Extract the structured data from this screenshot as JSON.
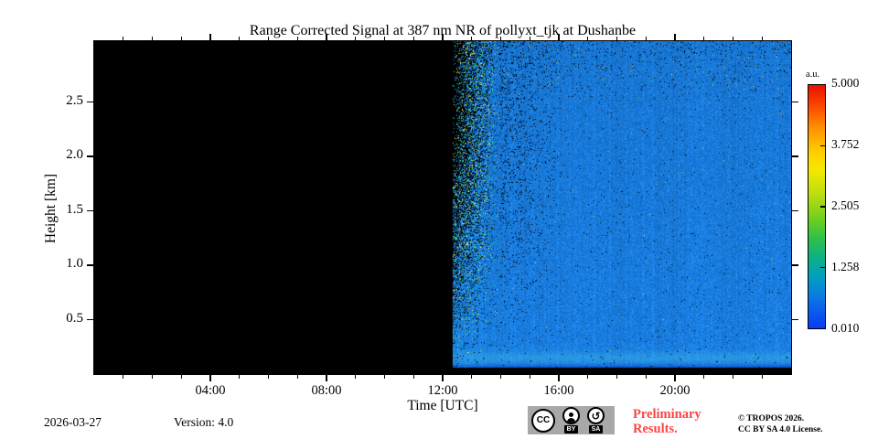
{
  "title": "Range Corrected Signal at 387 nm NR of pollyxt_tjk at Dushanbe",
  "footer": {
    "date": "2026-03-27",
    "version": "Version: 4.0",
    "license_badge": {
      "cc": "CC",
      "by": "BY",
      "sa": "SA"
    },
    "preliminary": {
      "line1": "Preliminary",
      "line2": "Results.",
      "color": "#f94545"
    },
    "copyright": {
      "line1": "© TROPOS 2026.",
      "line2": "CC BY SA 4.0 License."
    }
  },
  "chart_data": {
    "type": "heatmap",
    "title": "Range Corrected Signal at 387 nm NR of pollyxt_tjk at Dushanbe",
    "xlabel": "Time [UTC]",
    "ylabel": "Height [km]",
    "x_range_hours": [
      0,
      24
    ],
    "y_range_km": [
      0,
      3.06
    ],
    "x_major_tick_hours": [
      4,
      8,
      12,
      16,
      20
    ],
    "x_major_tick_labels": [
      "04:00",
      "08:00",
      "12:00",
      "16:00",
      "20:00"
    ],
    "x_minor_tick_interval_hours": 1,
    "y_major_ticks_km": [
      0.5,
      1.0,
      1.5,
      2.0,
      2.5
    ],
    "y_major_tick_labels": [
      "0.5",
      "1.0",
      "1.5",
      "2.0",
      "2.5"
    ],
    "grid": false,
    "colorbar": {
      "unit_label": "a.u.",
      "tick_values": [
        5.0,
        3.752,
        2.505,
        1.258,
        0.01
      ],
      "tick_labels": [
        "5.000",
        "3.752",
        "2.505",
        "1.258",
        "0.010"
      ],
      "range": [
        0.01,
        5.0
      ],
      "gradient_stops": [
        {
          "pos": 0,
          "color": "#e61300"
        },
        {
          "pos": 8,
          "color": "#fb4300"
        },
        {
          "pos": 17,
          "color": "#ff8c00"
        },
        {
          "pos": 27,
          "color": "#ffcc00"
        },
        {
          "pos": 35,
          "color": "#f5e800"
        },
        {
          "pos": 45,
          "color": "#bade0f"
        },
        {
          "pos": 55,
          "color": "#70cf1e"
        },
        {
          "pos": 63,
          "color": "#2fc04a"
        },
        {
          "pos": 71,
          "color": "#0cb184"
        },
        {
          "pos": 79,
          "color": "#009fc0"
        },
        {
          "pos": 87,
          "color": "#0b7ae0"
        },
        {
          "pos": 94,
          "color": "#0b56ee"
        },
        {
          "pos": 100,
          "color": "#0a3cf2"
        }
      ]
    },
    "content": {
      "description": "No lidar signal (black) from 00:00 until ~12:20 UTC; noisy low-level 387 nm range-corrected signal (blue field with speckle noise, colorful noise column at switch-on, bright near-surface layer around 0.15 km, black ground band) until 24:00.",
      "no_data_color": "#000000",
      "signal_start_hour": 12.35,
      "transition_noise_width_hours": 1.6,
      "base_signal_color": "#1478d6",
      "noise_speckle_colors": [
        "#3cc864",
        "#b4e44c",
        "#ffe45a",
        "#00d2c8",
        "#28a0e6"
      ],
      "near_surface_bright_band_center_km": 0.15,
      "ground_dark_band_km": 0.055,
      "seed": 1337
    }
  }
}
